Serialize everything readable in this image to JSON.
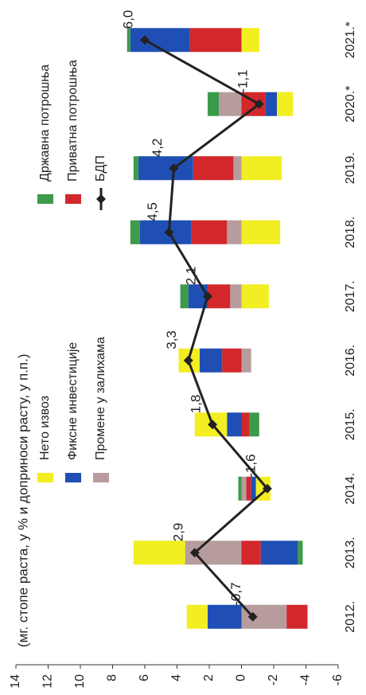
{
  "chart_data": {
    "type": "bar",
    "stacked": true,
    "title": "(мг. стопе раста, у % и доприноси расту, у п.п.)",
    "categories": [
      "2012.",
      "2013.",
      "2014.",
      "2015.",
      "2016.",
      "2017.",
      "2018.",
      "2019.",
      "2020.*",
      "2021.*"
    ],
    "series": [
      {
        "name": "Нето извоз",
        "color": "#f3ee22",
        "values": [
          1.3,
          3.2,
          -0.9,
          2.0,
          1.3,
          -1.7,
          -2.4,
          -2.5,
          -1.0,
          -1.1
        ]
      },
      {
        "name": "Фиксне инвестиције",
        "color": "#1f4fb4",
        "values": [
          2.1,
          -2.3,
          -0.3,
          0.9,
          1.4,
          1.2,
          3.2,
          3.4,
          -0.7,
          3.7
        ]
      },
      {
        "name": "Промене у залихама",
        "color": "#b79c9e",
        "values": [
          -2.8,
          3.5,
          -0.3,
          0,
          -0.6,
          0.7,
          0.9,
          0.5,
          1.4,
          0
        ]
      },
      {
        "name": "Државна потрошња",
        "color": "#3d9a4b",
        "values": [
          0,
          -0.3,
          0.2,
          -0.6,
          0,
          0.5,
          0.6,
          0.3,
          0.7,
          0.2
        ]
      },
      {
        "name": "Приватна потрошња",
        "color": "#d2282c",
        "values": [
          -1.3,
          -1.2,
          -0.3,
          -0.5,
          1.2,
          1.4,
          2.2,
          2.5,
          -1.5,
          3.2
        ]
      },
      {
        "name": "БДП",
        "type": "line",
        "color": "#222222",
        "values": [
          -0.7,
          2.9,
          -1.6,
          1.8,
          3.3,
          2.1,
          4.5,
          4.2,
          -1.1,
          6.0
        ],
        "value_labels": [
          "-0,7",
          "2,9",
          "-1,6",
          "1,8",
          "3,3",
          "2,1",
          "4,5",
          "4,2",
          "-1,1",
          "6,0"
        ]
      }
    ],
    "ylim": [
      -6,
      14
    ],
    "yticks": [
      -6,
      -4,
      -2,
      0,
      2,
      4,
      6,
      8,
      10,
      12,
      14
    ],
    "grid": false
  }
}
